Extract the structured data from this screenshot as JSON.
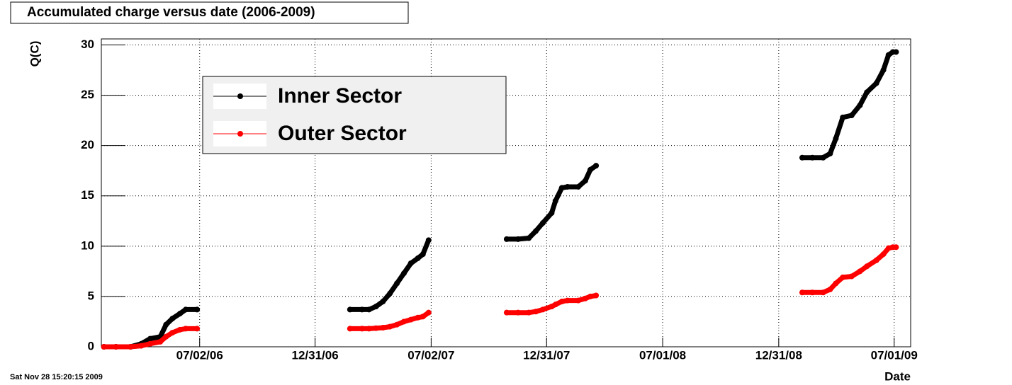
{
  "chart_data": {
    "type": "line",
    "title": "Accumulated charge versus date (2006-2009)",
    "y_label": "Q(C)",
    "x_label": "Date",
    "timestamp": "Sat Nov 28 15:20:15 2009",
    "x": [
      "2006-02-01",
      "2006-02-20",
      "2006-03-15",
      "2006-04-01",
      "2006-04-15",
      "2006-05-01",
      "2006-05-10",
      "2006-05-20",
      "2006-06-01",
      "2006-06-10",
      "2006-06-28",
      "2006-11-01",
      "2007-02-24",
      "2007-03-15",
      "2007-03-26",
      "2007-04-06",
      "2007-04-17",
      "2007-04-28",
      "2007-05-09",
      "2007-05-20",
      "2007-05-31",
      "2007-06-11",
      "2007-06-19",
      "2007-06-28",
      "2007-09-01",
      "2007-10-29",
      "2007-11-16",
      "2007-12-03",
      "2007-12-14",
      "2007-12-25",
      "2008-01-08",
      "2008-01-14",
      "2008-01-24",
      "2008-02-02",
      "2008-02-19",
      "2008-03-01",
      "2008-03-09",
      "2008-03-18",
      "2008-09-01",
      "2009-02-06",
      "2009-02-22",
      "2009-03-11",
      "2009-03-22",
      "2009-03-31",
      "2009-04-11",
      "2009-04-25",
      "2009-05-08",
      "2009-05-19",
      "2009-06-03",
      "2009-06-14",
      "2009-06-22",
      "2009-06-29",
      "2009-07-04"
    ],
    "series": [
      {
        "name": "Inner Sector",
        "color": "#000000",
        "values": [
          0,
          0,
          0,
          0.3,
          0.8,
          1.0,
          2.2,
          2.8,
          3.3,
          3.7,
          3.7,
          null,
          3.7,
          3.7,
          3.7,
          4.0,
          4.5,
          5.3,
          6.3,
          7.3,
          8.3,
          8.8,
          9.2,
          10.6,
          null,
          10.7,
          10.7,
          10.8,
          11.5,
          12.3,
          13.3,
          14.5,
          15.8,
          15.9,
          15.9,
          16.5,
          17.6,
          18.0,
          null,
          18.8,
          18.8,
          18.8,
          19.2,
          20.7,
          22.8,
          23.0,
          24.0,
          25.3,
          26.2,
          27.5,
          29.0,
          29.3,
          29.3
        ]
      },
      {
        "name": "Outer Sector",
        "color": "#ff0000",
        "values": [
          0,
          0,
          0,
          0.1,
          0.3,
          0.5,
          1.0,
          1.4,
          1.7,
          1.8,
          1.8,
          null,
          1.8,
          1.8,
          1.8,
          1.85,
          1.9,
          2.0,
          2.2,
          2.5,
          2.7,
          2.9,
          3.0,
          3.4,
          null,
          3.4,
          3.4,
          3.4,
          3.5,
          3.7,
          4.0,
          4.2,
          4.5,
          4.6,
          4.6,
          4.8,
          5.0,
          5.1,
          null,
          5.4,
          5.4,
          5.4,
          5.7,
          6.3,
          6.9,
          7.0,
          7.5,
          8.0,
          8.6,
          9.2,
          9.8,
          9.9,
          9.9
        ]
      }
    ],
    "xlim": [
      "2006-01-28",
      "2009-07-27"
    ],
    "xticks": [
      {
        "value": "2006-07-02",
        "label": "07/02/06"
      },
      {
        "value": "2006-12-31",
        "label": "12/31/06"
      },
      {
        "value": "2007-07-02",
        "label": "07/02/07"
      },
      {
        "value": "2007-12-31",
        "label": "12/31/07"
      },
      {
        "value": "2008-07-01",
        "label": "07/01/08"
      },
      {
        "value": "2008-12-31",
        "label": "12/31/08"
      },
      {
        "value": "2009-07-01",
        "label": "07/01/09"
      }
    ],
    "ylim": [
      0,
      30.6
    ],
    "yticks": [
      0,
      5,
      10,
      15,
      20,
      25,
      30
    ],
    "grid": true
  }
}
